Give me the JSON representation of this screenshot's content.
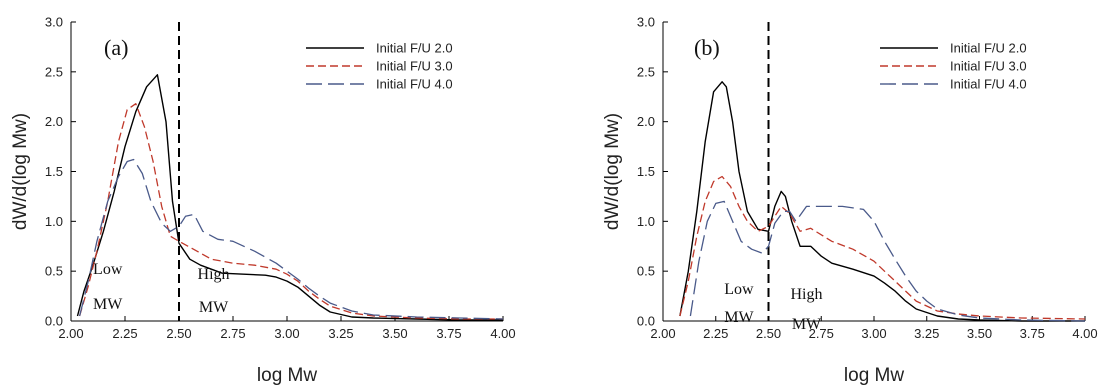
{
  "chart_data": [
    {
      "type": "line",
      "panel_label": "(a)",
      "xlabel": "log Mw",
      "ylabel": "dW/d(log Mw)",
      "xlim": [
        2.0,
        4.0
      ],
      "ylim": [
        0.0,
        3.0
      ],
      "xticks": [
        "2.00",
        "2.25",
        "2.50",
        "2.75",
        "3.00",
        "3.25",
        "3.50",
        "3.75",
        "4.00"
      ],
      "yticks": [
        "0.0",
        "0.5",
        "1.0",
        "1.5",
        "2.0",
        "2.5",
        "3.0"
      ],
      "divider_x": 2.5,
      "legend_position": "top-right",
      "annotations": [
        {
          "text": [
            "Low",
            "MW"
          ],
          "x": 2.17,
          "y": [
            0.53,
            0.18
          ]
        },
        {
          "text": [
            "High",
            "MW"
          ],
          "x": 2.66,
          "y": [
            0.48,
            0.15
          ]
        }
      ],
      "series": [
        {
          "name": "Initial F/U 2.0",
          "color": "#000000",
          "dash": "",
          "x": [
            2.03,
            2.06,
            2.1,
            2.15,
            2.2,
            2.25,
            2.3,
            2.35,
            2.4,
            2.44,
            2.47,
            2.5,
            2.55,
            2.6,
            2.65,
            2.7,
            2.8,
            2.9,
            2.95,
            3.0,
            3.05,
            3.1,
            3.15,
            3.2,
            3.3,
            3.4,
            3.6,
            3.8,
            4.0
          ],
          "y": [
            0.05,
            0.3,
            0.55,
            0.9,
            1.3,
            1.75,
            2.1,
            2.35,
            2.47,
            2.0,
            1.2,
            0.78,
            0.62,
            0.56,
            0.52,
            0.48,
            0.47,
            0.46,
            0.44,
            0.4,
            0.34,
            0.25,
            0.16,
            0.09,
            0.04,
            0.03,
            0.02,
            0.01,
            0.01
          ]
        },
        {
          "name": "Initial F/U 3.0",
          "color": "#c0392b",
          "dash": "8,4",
          "x": [
            2.04,
            2.08,
            2.12,
            2.17,
            2.22,
            2.26,
            2.3,
            2.34,
            2.38,
            2.42,
            2.46,
            2.5,
            2.55,
            2.6,
            2.65,
            2.75,
            2.85,
            2.95,
            3.0,
            3.05,
            3.1,
            3.15,
            3.2,
            3.3,
            3.4,
            3.6,
            3.8,
            4.0
          ],
          "y": [
            0.05,
            0.35,
            0.7,
            1.2,
            1.8,
            2.12,
            2.18,
            1.95,
            1.6,
            1.15,
            0.85,
            0.8,
            0.74,
            0.68,
            0.62,
            0.58,
            0.56,
            0.52,
            0.47,
            0.4,
            0.3,
            0.22,
            0.15,
            0.08,
            0.05,
            0.03,
            0.02,
            0.02
          ]
        },
        {
          "name": "Initial F/U 4.0",
          "color": "#4a5a8a",
          "dash": "16,6",
          "x": [
            2.04,
            2.08,
            2.12,
            2.17,
            2.22,
            2.26,
            2.29,
            2.33,
            2.37,
            2.42,
            2.46,
            2.5,
            2.53,
            2.57,
            2.61,
            2.68,
            2.75,
            2.85,
            2.95,
            3.0,
            3.05,
            3.1,
            3.15,
            3.2,
            3.3,
            3.4,
            3.6,
            3.8,
            4.0
          ],
          "y": [
            0.05,
            0.4,
            0.8,
            1.2,
            1.45,
            1.6,
            1.62,
            1.48,
            1.2,
            0.98,
            0.9,
            0.95,
            1.05,
            1.07,
            0.9,
            0.82,
            0.8,
            0.7,
            0.58,
            0.5,
            0.42,
            0.33,
            0.25,
            0.18,
            0.1,
            0.06,
            0.04,
            0.03,
            0.02
          ]
        }
      ]
    },
    {
      "type": "line",
      "panel_label": "(b)",
      "xlabel": "log Mw",
      "ylabel": "dW/d(log Mw)",
      "xlim": [
        2.0,
        4.0
      ],
      "ylim": [
        0.0,
        3.0
      ],
      "xticks": [
        "2.00",
        "2.25",
        "2.50",
        "2.75",
        "3.00",
        "3.25",
        "3.50",
        "3.75",
        "4.00"
      ],
      "yticks": [
        "0.0",
        "0.5",
        "1.0",
        "1.5",
        "2.0",
        "2.5",
        "3.0"
      ],
      "divider_x": 2.5,
      "legend_position": "top-right",
      "annotations": [
        {
          "text": [
            "Low",
            "MW"
          ],
          "x": 2.36,
          "y": [
            0.33,
            0.05
          ]
        },
        {
          "text": [
            "High",
            "MW"
          ],
          "x": 2.68,
          "y": [
            0.28,
            -0.02
          ]
        }
      ],
      "series": [
        {
          "name": "Initial F/U 2.0",
          "color": "#000000",
          "dash": "",
          "x": [
            2.08,
            2.12,
            2.16,
            2.2,
            2.24,
            2.28,
            2.3,
            2.33,
            2.36,
            2.4,
            2.45,
            2.5,
            2.53,
            2.56,
            2.58,
            2.61,
            2.65,
            2.7,
            2.75,
            2.8,
            2.9,
            3.0,
            3.05,
            3.1,
            3.15,
            3.2,
            3.3,
            3.4,
            3.5,
            3.7,
            4.0
          ],
          "y": [
            0.05,
            0.5,
            1.1,
            1.8,
            2.3,
            2.4,
            2.35,
            2.0,
            1.5,
            1.1,
            0.92,
            0.9,
            1.15,
            1.3,
            1.25,
            1.0,
            0.75,
            0.75,
            0.65,
            0.58,
            0.52,
            0.45,
            0.38,
            0.3,
            0.2,
            0.12,
            0.05,
            0.02,
            0.01,
            0.0,
            0.0
          ]
        },
        {
          "name": "Initial F/U 3.0",
          "color": "#c0392b",
          "dash": "8,4",
          "x": [
            2.08,
            2.12,
            2.16,
            2.2,
            2.24,
            2.28,
            2.32,
            2.36,
            2.4,
            2.45,
            2.5,
            2.53,
            2.56,
            2.6,
            2.65,
            2.7,
            2.8,
            2.9,
            3.0,
            3.05,
            3.1,
            3.15,
            3.2,
            3.3,
            3.4,
            3.5,
            3.7,
            4.0
          ],
          "y": [
            0.05,
            0.4,
            0.85,
            1.2,
            1.4,
            1.45,
            1.35,
            1.15,
            1.0,
            0.9,
            0.95,
            1.05,
            1.15,
            1.08,
            0.9,
            0.93,
            0.8,
            0.72,
            0.6,
            0.5,
            0.4,
            0.3,
            0.2,
            0.1,
            0.07,
            0.05,
            0.03,
            0.02
          ]
        },
        {
          "name": "Initial F/U 4.0",
          "color": "#4a5a8a",
          "dash": "16,6",
          "x": [
            2.13,
            2.17,
            2.21,
            2.25,
            2.29,
            2.33,
            2.37,
            2.42,
            2.47,
            2.5,
            2.53,
            2.57,
            2.6,
            2.63,
            2.68,
            2.75,
            2.85,
            2.95,
            3.0,
            3.05,
            3.1,
            3.15,
            3.2,
            3.25,
            3.3,
            3.4,
            3.5,
            3.7,
            4.0
          ],
          "y": [
            0.05,
            0.6,
            1.0,
            1.18,
            1.2,
            1.0,
            0.8,
            0.72,
            0.68,
            0.75,
            0.98,
            1.1,
            1.1,
            1.0,
            1.15,
            1.15,
            1.15,
            1.12,
            1.0,
            0.8,
            0.62,
            0.45,
            0.3,
            0.2,
            0.12,
            0.06,
            0.03,
            0.01,
            0.0
          ]
        }
      ]
    }
  ]
}
